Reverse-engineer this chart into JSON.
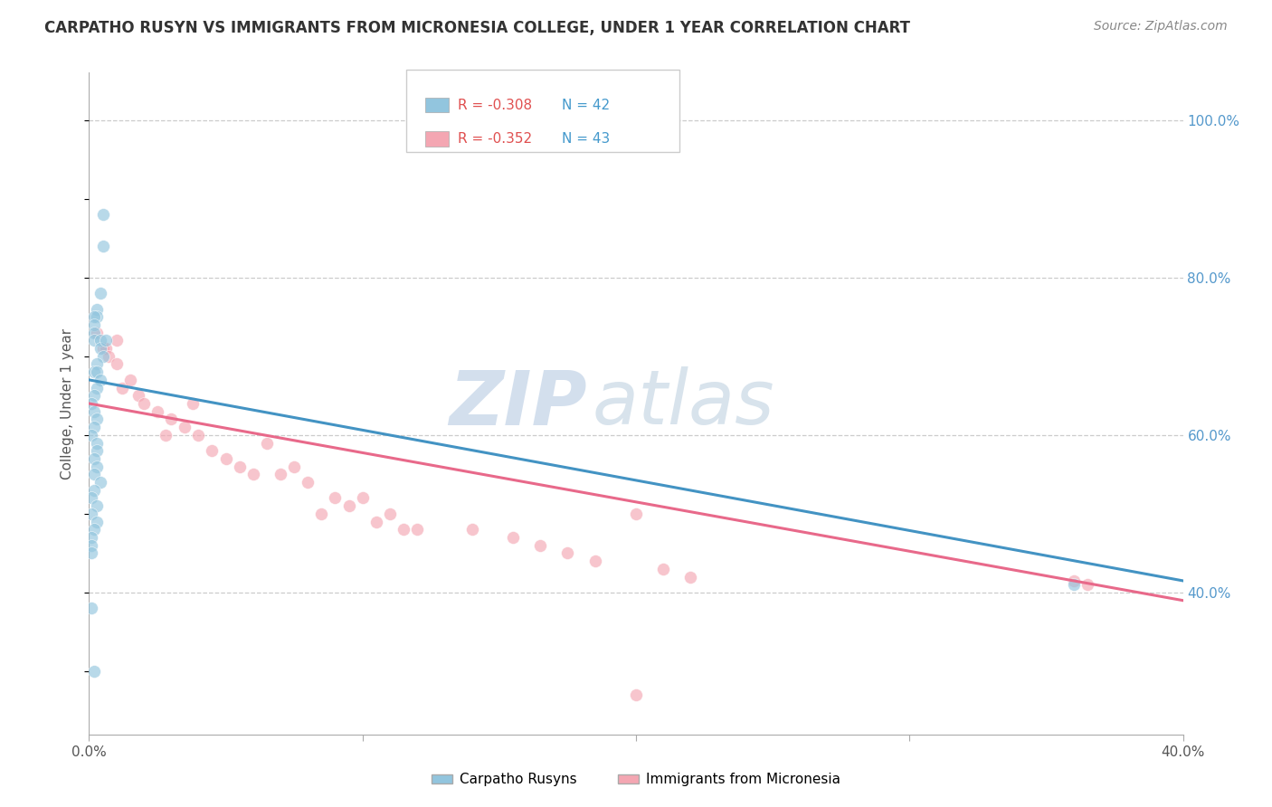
{
  "title": "CARPATHO RUSYN VS IMMIGRANTS FROM MICRONESIA COLLEGE, UNDER 1 YEAR CORRELATION CHART",
  "source": "Source: ZipAtlas.com",
  "ylabel": "College, Under 1 year",
  "blue_label": "Carpatho Rusyns",
  "pink_label": "Immigrants from Micronesia",
  "blue_R": -0.308,
  "blue_N": 42,
  "pink_R": -0.352,
  "pink_N": 43,
  "blue_color": "#92c5de",
  "pink_color": "#f4a6b2",
  "blue_line_color": "#4393c3",
  "pink_line_color": "#e8698a",
  "xmin": 0.0,
  "xmax": 0.4,
  "ymin": 0.22,
  "ymax": 1.06,
  "right_y_ticks": [
    0.4,
    0.6,
    0.8,
    1.0
  ],
  "right_y_tick_labels": [
    "40.0%",
    "60.0%",
    "80.0%",
    "100.0%"
  ],
  "x_ticks": [
    0.0,
    0.1,
    0.2,
    0.3,
    0.4
  ],
  "x_tick_labels": [
    "0.0%",
    "",
    "",
    "",
    "40.0%"
  ],
  "watermark_zip": "ZIP",
  "watermark_atlas": "atlas",
  "blue_scatter_x": [
    0.005,
    0.005,
    0.004,
    0.003,
    0.003,
    0.002,
    0.002,
    0.002,
    0.002,
    0.004,
    0.004,
    0.005,
    0.003,
    0.002,
    0.003,
    0.004,
    0.006,
    0.003,
    0.002,
    0.001,
    0.002,
    0.003,
    0.002,
    0.001,
    0.003,
    0.003,
    0.002,
    0.003,
    0.002,
    0.004,
    0.002,
    0.001,
    0.003,
    0.001,
    0.003,
    0.002,
    0.001,
    0.001,
    0.002,
    0.001,
    0.001,
    0.36
  ],
  "blue_scatter_y": [
    0.88,
    0.84,
    0.78,
    0.76,
    0.75,
    0.75,
    0.74,
    0.73,
    0.72,
    0.72,
    0.71,
    0.7,
    0.69,
    0.68,
    0.68,
    0.67,
    0.72,
    0.66,
    0.65,
    0.64,
    0.63,
    0.62,
    0.61,
    0.6,
    0.59,
    0.58,
    0.57,
    0.56,
    0.55,
    0.54,
    0.53,
    0.52,
    0.51,
    0.5,
    0.49,
    0.48,
    0.47,
    0.38,
    0.3,
    0.46,
    0.45,
    0.41
  ],
  "pink_scatter_x": [
    0.003,
    0.005,
    0.006,
    0.007,
    0.01,
    0.01,
    0.012,
    0.015,
    0.018,
    0.02,
    0.025,
    0.028,
    0.03,
    0.035,
    0.038,
    0.04,
    0.045,
    0.05,
    0.055,
    0.06,
    0.065,
    0.07,
    0.075,
    0.08,
    0.085,
    0.09,
    0.095,
    0.1,
    0.105,
    0.11,
    0.115,
    0.12,
    0.14,
    0.155,
    0.165,
    0.175,
    0.185,
    0.2,
    0.21,
    0.22,
    0.36,
    0.365,
    0.2
  ],
  "pink_scatter_y": [
    0.73,
    0.71,
    0.71,
    0.7,
    0.72,
    0.69,
    0.66,
    0.67,
    0.65,
    0.64,
    0.63,
    0.6,
    0.62,
    0.61,
    0.64,
    0.6,
    0.58,
    0.57,
    0.56,
    0.55,
    0.59,
    0.55,
    0.56,
    0.54,
    0.5,
    0.52,
    0.51,
    0.52,
    0.49,
    0.5,
    0.48,
    0.48,
    0.48,
    0.47,
    0.46,
    0.45,
    0.44,
    0.27,
    0.43,
    0.42,
    0.415,
    0.41,
    0.5
  ],
  "blue_line_x": [
    0.0,
    0.4
  ],
  "blue_line_y": [
    0.67,
    0.415
  ],
  "pink_line_x": [
    0.0,
    0.4
  ],
  "pink_line_y": [
    0.64,
    0.39
  ]
}
